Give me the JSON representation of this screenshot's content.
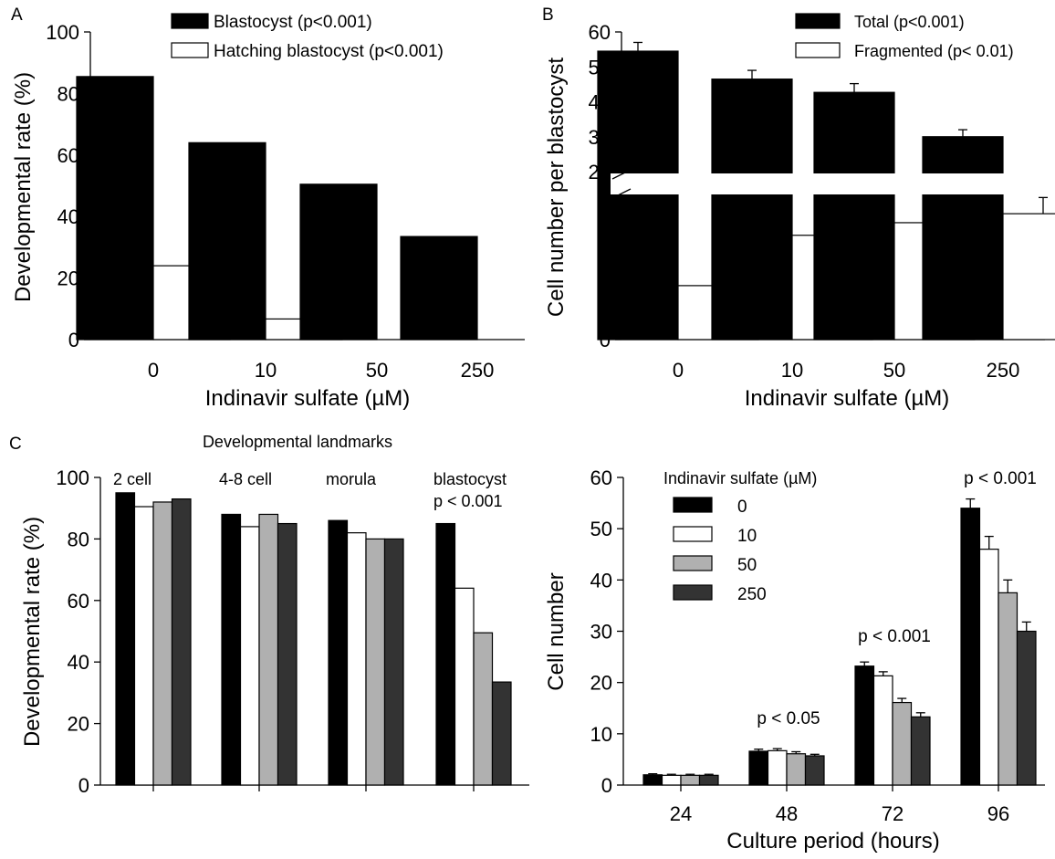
{
  "chart_data": [
    {
      "panel": "A",
      "type": "bar",
      "xlabel": "Indinavir sulfate (µM)",
      "ylabel": "Developmental rate (%)",
      "categories": [
        "0",
        "10",
        "50",
        "250"
      ],
      "ylim": [
        0,
        100
      ],
      "yticks": [
        "0",
        "20",
        "40",
        "60",
        "80",
        "100"
      ],
      "series": [
        {
          "name": "Blastocyst (p<0.001)",
          "color": "#000000",
          "values": [
            85.5,
            64,
            50.5,
            33.5
          ]
        },
        {
          "name": "Hatching blastocyst (p<0.001)",
          "color": "#ffffff",
          "values": [
            24,
            6.7,
            0,
            0
          ]
        }
      ],
      "legend": "top-right",
      "grid": false
    },
    {
      "panel": "B",
      "type": "bar",
      "xlabel": "Indinavir sulfate (µM)",
      "ylabel": "Cell number per blastocyst",
      "categories": [
        "0",
        "10",
        "50",
        "250"
      ],
      "ylim_upper": [
        20,
        60
      ],
      "yticks_upper": [
        "20",
        "30",
        "40",
        "50",
        "60"
      ],
      "ytick_lower": "0",
      "axis_break": true,
      "series": [
        {
          "name": "Total (p<0.001)",
          "color": "#000000",
          "values": [
            54.5,
            46.5,
            42.7,
            30
          ],
          "errors": [
            2.5,
            2.5,
            2.5,
            2
          ]
        },
        {
          "name": "Fragmented (p< 0.01)",
          "color": "#ffffff",
          "values": [
            3,
            5.8,
            6.5,
            7
          ],
          "errors": [
            0.4,
            0.5,
            0.8,
            0.9
          ]
        }
      ],
      "legend": "top-right",
      "grid": false
    },
    {
      "panel": "C",
      "type": "bar",
      "title": "Developmental landmarks",
      "ylabel": "Developmental rate (%)",
      "categories": [
        "2 cell",
        "4-8 cell",
        "morula",
        "blastocyst"
      ],
      "ylim": [
        0,
        100
      ],
      "yticks": [
        "0",
        "20",
        "40",
        "60",
        "80",
        "100"
      ],
      "annotations": [
        {
          "category": "blastocyst",
          "text": "p < 0.001"
        }
      ],
      "series": [
        {
          "name": "0",
          "color": "#000000",
          "values": [
            95,
            88,
            86,
            85
          ]
        },
        {
          "name": "10",
          "color": "#ffffff",
          "values": [
            90.5,
            84,
            82,
            64
          ]
        },
        {
          "name": "50",
          "color": "#b0b0b0",
          "values": [
            92,
            88,
            80,
            49.5
          ]
        },
        {
          "name": "250",
          "color": "#333333",
          "values": [
            93,
            85,
            80,
            33.5
          ]
        }
      ],
      "grid": false
    },
    {
      "panel": "",
      "type": "bar",
      "xlabel": "Culture period (hours)",
      "ylabel": "Cell number",
      "categories": [
        "24",
        "48",
        "72",
        "96"
      ],
      "ylim": [
        0,
        60
      ],
      "yticks": [
        "0",
        "10",
        "20",
        "30",
        "40",
        "50",
        "60"
      ],
      "legend_title": "Indinavir sulfate (µM)",
      "legend": "top-left",
      "annotations": [
        {
          "category": "48",
          "text": "p < 0.05"
        },
        {
          "category": "72",
          "text": "p < 0.001"
        },
        {
          "category": "96",
          "text": "p < 0.001"
        }
      ],
      "series": [
        {
          "name": "0",
          "color": "#000000",
          "values": [
            2,
            6.6,
            23.2,
            54
          ],
          "errors": [
            0.2,
            0.4,
            0.8,
            1.8
          ]
        },
        {
          "name": "10",
          "color": "#ffffff",
          "values": [
            1.9,
            6.7,
            21.3,
            46
          ],
          "errors": [
            0.2,
            0.4,
            0.8,
            2.5
          ]
        },
        {
          "name": "50",
          "color": "#b0b0b0",
          "values": [
            1.9,
            6.1,
            16.1,
            37.5
          ],
          "errors": [
            0.2,
            0.4,
            0.8,
            2.5
          ]
        },
        {
          "name": "250",
          "color": "#333333",
          "values": [
            1.9,
            5.7,
            13.3,
            30
          ],
          "errors": [
            0.2,
            0.3,
            0.8,
            1.8
          ]
        }
      ],
      "grid": false
    }
  ]
}
